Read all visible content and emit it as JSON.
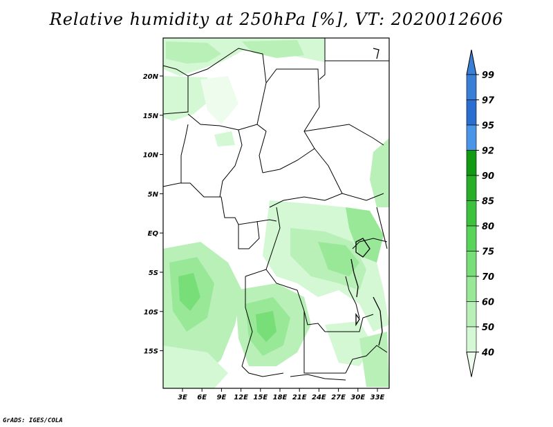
{
  "title": "Relative humidity at 250hPa [%], VT: 2020012606",
  "credit": "GrADS: IGES/COLA",
  "map": {
    "lon_labels": [
      "3E",
      "6E",
      "9E",
      "12E",
      "15E",
      "18E",
      "21E",
      "24E",
      "27E",
      "30E",
      "33E"
    ],
    "lat_labels": [
      "20N",
      "15N",
      "10N",
      "5N",
      "EQ",
      "5S",
      "10S",
      "15S"
    ],
    "lon_range": [
      0,
      35
    ],
    "lat_range": [
      -20,
      25
    ]
  },
  "colorbar": {
    "levels": [
      "99",
      "97",
      "95",
      "92",
      "90",
      "85",
      "80",
      "75",
      "70",
      "60",
      "50",
      "40"
    ],
    "colors": [
      "#3a7fd6",
      "#2a6fd0",
      "#4a95e8",
      "#129a12",
      "#2aae2a",
      "#3dc23d",
      "#58d458",
      "#78de78",
      "#98e898",
      "#b8f0b8",
      "#d4f7d4",
      "#eefcee"
    ]
  }
}
